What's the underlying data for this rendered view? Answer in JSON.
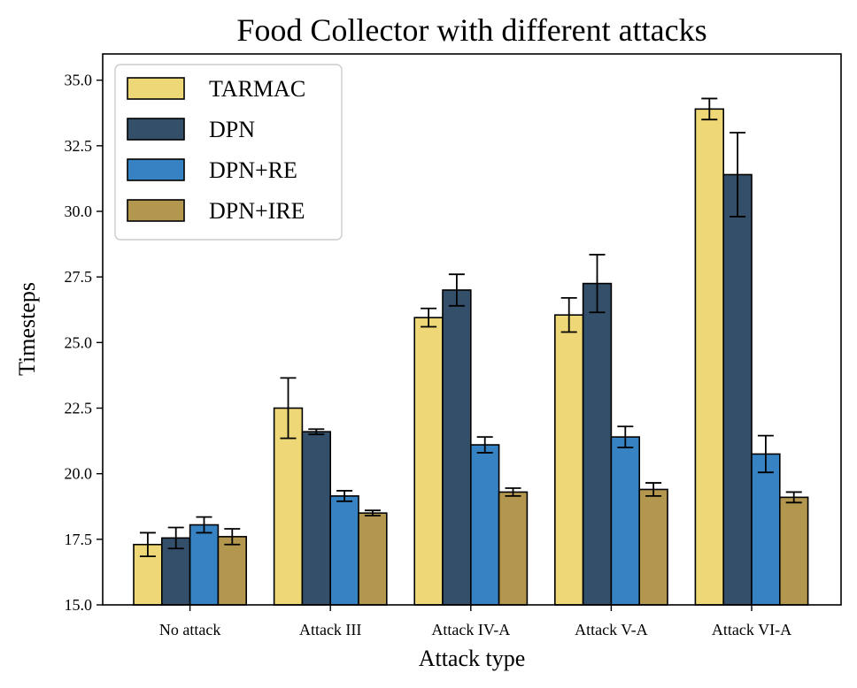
{
  "chart_data": {
    "type": "bar",
    "title": "Food Collector with different attacks",
    "xlabel": "Attack type",
    "ylabel": "Timesteps",
    "ylim": [
      15.0,
      36.0
    ],
    "yticks": [
      "15.0",
      "17.5",
      "20.0",
      "22.5",
      "25.0",
      "27.5",
      "30.0",
      "32.5",
      "35.0"
    ],
    "categories": [
      "No attack",
      "Attack III",
      "Attack IV-A",
      "Attack V-A",
      "Attack VI-A"
    ],
    "grid": false,
    "legend_position": "top-left",
    "series": [
      {
        "name": "TARMAC",
        "color": "#EDD776",
        "values": [
          17.3,
          22.5,
          25.95,
          26.05,
          33.9
        ],
        "errors": [
          0.45,
          1.15,
          0.35,
          0.65,
          0.4
        ]
      },
      {
        "name": "DPN",
        "color": "#334F69",
        "values": [
          17.55,
          21.6,
          27.0,
          27.25,
          31.4
        ],
        "errors": [
          0.4,
          0.1,
          0.6,
          1.1,
          1.6
        ]
      },
      {
        "name": "DPN+RE",
        "color": "#3782C3",
        "values": [
          18.05,
          19.15,
          21.1,
          21.4,
          20.75
        ],
        "errors": [
          0.3,
          0.2,
          0.3,
          0.4,
          0.7
        ]
      },
      {
        "name": "DPN+IRE",
        "color": "#B4974F",
        "values": [
          17.6,
          18.5,
          19.3,
          19.4,
          19.1
        ],
        "errors": [
          0.3,
          0.1,
          0.15,
          0.25,
          0.2
        ]
      }
    ]
  }
}
